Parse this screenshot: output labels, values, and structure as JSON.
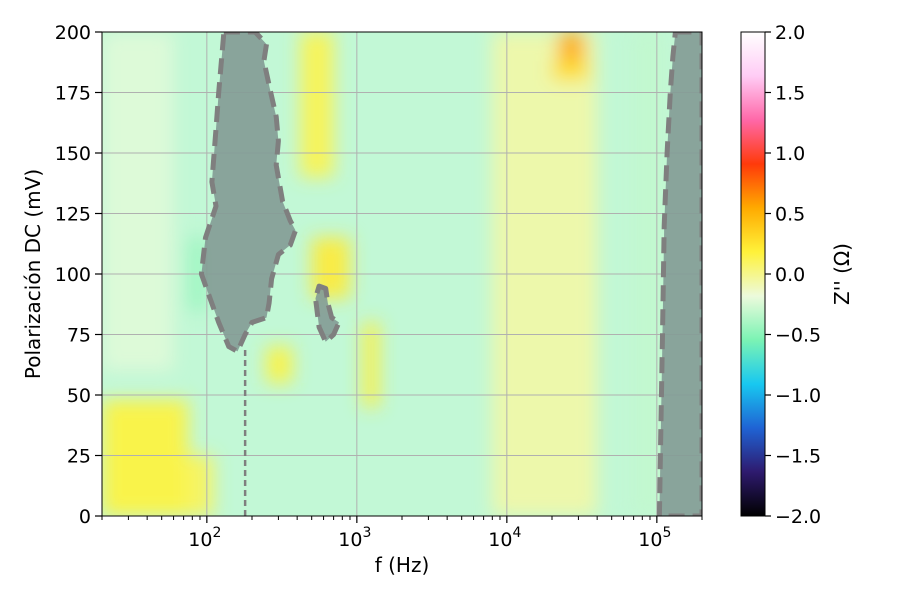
{
  "chart_data": {
    "type": "heatmap",
    "xlabel": "f (Hz)",
    "ylabel": "Polarización DC (mV)",
    "xscale": "log",
    "xlim": [
      20,
      200000
    ],
    "ylim": [
      0,
      200
    ],
    "grid": true,
    "x_ticks": [
      {
        "value": 100,
        "mant": "10",
        "exp": "2"
      },
      {
        "value": 1000,
        "mant": "10",
        "exp": "3"
      },
      {
        "value": 10000,
        "mant": "10",
        "exp": "4"
      },
      {
        "value": 100000,
        "mant": "10",
        "exp": "5"
      }
    ],
    "y_ticks": [
      {
        "value": 0,
        "label": "0"
      },
      {
        "value": 25,
        "label": "25"
      },
      {
        "value": 50,
        "label": "50"
      },
      {
        "value": 75,
        "label": "75"
      },
      {
        "value": 100,
        "label": "100"
      },
      {
        "value": 125,
        "label": "125"
      },
      {
        "value": 150,
        "label": "150"
      },
      {
        "value": 175,
        "label": "175"
      },
      {
        "value": 200,
        "label": "200"
      }
    ],
    "colorbar": {
      "label": "Z'' (Ω)",
      "range": [
        -2.0,
        2.0
      ],
      "ticks": [
        {
          "value": 2.0,
          "label": "2.0"
        },
        {
          "value": 1.5,
          "label": "1.5"
        },
        {
          "value": 1.0,
          "label": "1.0"
        },
        {
          "value": 0.5,
          "label": "0.5"
        },
        {
          "value": 0.0,
          "label": "0.0"
        },
        {
          "value": -0.5,
          "label": "−0.5"
        },
        {
          "value": -1.0,
          "label": "−1.0"
        },
        {
          "value": -1.5,
          "label": "−1.5"
        },
        {
          "value": -2.0,
          "label": "−2.0"
        }
      ],
      "colors": [
        "#000000",
        "#2e1a6e",
        "#1f63d4",
        "#18c8f0",
        "#7bf3b4",
        "#ecfadc",
        "#fff23a",
        "#ffaa00",
        "#ff3a0a",
        "#ff68a8",
        "#ffccf5",
        "#ffffff"
      ]
    },
    "background_color": "#c2f8d6",
    "patches": [
      {
        "f": [
          20,
          75
        ],
        "v": [
          0,
          48
        ],
        "z": 0.18
      },
      {
        "f": [
          75,
          110
        ],
        "v": [
          0,
          25
        ],
        "z": 0.12
      },
      {
        "f": [
          20,
          60
        ],
        "v": [
          60,
          200
        ],
        "z": -0.22
      },
      {
        "f": [
          75,
          100
        ],
        "v": [
          85,
          115
        ],
        "z": -0.45
      },
      {
        "f": [
          250,
          370
        ],
        "v": [
          55,
          70
        ],
        "z": 0.18
      },
      {
        "f": [
          500,
          900
        ],
        "v": [
          90,
          115
        ],
        "z": 0.22
      },
      {
        "f": [
          420,
          700
        ],
        "v": [
          140,
          200
        ],
        "z": 0.14
      },
      {
        "f": [
          1100,
          1400
        ],
        "v": [
          45,
          80
        ],
        "z": 0.2
      },
      {
        "f": [
          8000,
          40000
        ],
        "v": [
          0,
          200
        ],
        "z": -0.06
      },
      {
        "f": [
          70000,
          110000
        ],
        "v": [
          0,
          200
        ],
        "z": -0.32
      },
      {
        "f": [
          22000,
          33000
        ],
        "v": [
          188,
          200
        ],
        "z": 0.55
      },
      {
        "f": [
          20000,
          35000
        ],
        "v": [
          180,
          188
        ],
        "z": 0.3
      }
    ],
    "contours": [
      {
        "fill": "#849c96",
        "points": [
          [
            130,
            200
          ],
          [
            210,
            200
          ],
          [
            250,
            195
          ],
          [
            240,
            188
          ],
          [
            260,
            178
          ],
          [
            290,
            165
          ],
          [
            300,
            155
          ],
          [
            290,
            145
          ],
          [
            320,
            130
          ],
          [
            360,
            122
          ],
          [
            390,
            118
          ],
          [
            360,
            112
          ],
          [
            300,
            108
          ],
          [
            270,
            98
          ],
          [
            260,
            88
          ],
          [
            250,
            82
          ],
          [
            200,
            80
          ],
          [
            180,
            75
          ],
          [
            160,
            68
          ],
          [
            140,
            70
          ],
          [
            120,
            80
          ],
          [
            105,
            90
          ],
          [
            92,
            100
          ],
          [
            98,
            115
          ],
          [
            115,
            128
          ],
          [
            108,
            138
          ],
          [
            115,
            160
          ],
          [
            120,
            175
          ]
        ]
      },
      {
        "fill": "#849c96",
        "points": [
          [
            560,
            95
          ],
          [
            620,
            94
          ],
          [
            640,
            88
          ],
          [
            680,
            82
          ],
          [
            760,
            80
          ],
          [
            700,
            75
          ],
          [
            620,
            72
          ],
          [
            560,
            78
          ],
          [
            530,
            90
          ]
        ]
      },
      {
        "fill": "#849c96",
        "points": [
          [
            133000,
            200
          ],
          [
            200000,
            200
          ],
          [
            200000,
            0
          ],
          [
            104000,
            0
          ],
          [
            106000,
            30
          ],
          [
            109000,
            75
          ],
          [
            112000,
            120
          ],
          [
            117000,
            150
          ],
          [
            123000,
            175
          ],
          [
            128000,
            190
          ]
        ]
      }
    ],
    "vline": {
      "x": 180,
      "v": [
        0,
        70
      ]
    }
  }
}
